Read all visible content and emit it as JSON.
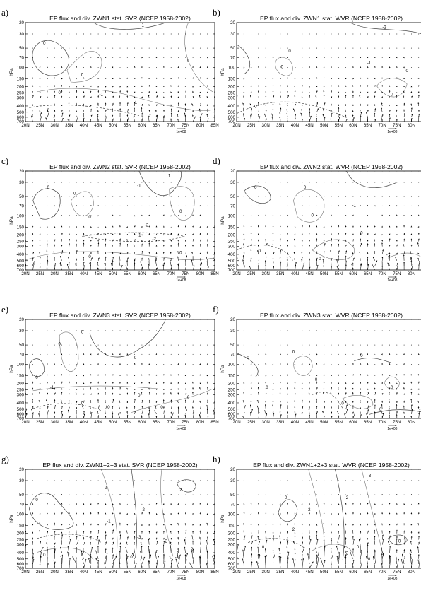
{
  "chart_data": [
    {
      "id": "a",
      "panel_label": "a)",
      "type": "vector-contour",
      "title": "EP flux and div. ZWN1 stat. SVR (NCEP 1958-2002)",
      "ylabel": "hPa",
      "reference_vector": "1e+08",
      "contour_labels": [
        "0",
        "0",
        "-1",
        "0",
        "0",
        "-1",
        "1",
        "0"
      ],
      "vector_scale": 1
    },
    {
      "id": "b",
      "panel_label": "b)",
      "type": "vector-contour",
      "title": "EP flux and div. ZWN1 stat. WVR (NCEP 1958-2002)",
      "ylabel": "hPa",
      "reference_vector": "1e+08",
      "contour_labels": [
        "-2",
        "0",
        "0",
        "0",
        "0",
        "-1",
        "0"
      ],
      "vector_scale": 1
    },
    {
      "id": "c",
      "panel_label": "c)",
      "type": "vector-contour",
      "title": "EP flux and div. ZWN2 stat. SVR (NCEP 1958-2002)",
      "ylabel": "hPa",
      "reference_vector": "1e+08",
      "contour_labels": [
        "0",
        "-1",
        "0",
        "0",
        "0",
        "1",
        "-1",
        "-2",
        "0",
        "-2",
        "0"
      ],
      "vector_scale": 1.2
    },
    {
      "id": "d",
      "panel_label": "d)",
      "type": "vector-contour",
      "title": "EP flux and div. ZWN2 stat. WVR (NCEP 1958-2002)",
      "ylabel": "hPa",
      "reference_vector": "1e+08",
      "contour_labels": [
        "0",
        "0",
        "-1",
        "0",
        "0",
        "-1",
        "0",
        "0",
        "0"
      ],
      "vector_scale": 1.3
    },
    {
      "id": "e",
      "panel_label": "e)",
      "type": "vector-contour",
      "title": "EP flux and div. ZWN3 stat. SVR (NCEP 1958-2002)",
      "ylabel": "hPa",
      "reference_vector": "1e+08",
      "contour_labels": [
        "0",
        "0",
        "0",
        "0",
        "-1",
        "0",
        "0",
        "0",
        "0",
        "0"
      ],
      "vector_scale": 1.1
    },
    {
      "id": "f",
      "panel_label": "f)",
      "type": "vector-contour",
      "title": "EP flux and div. ZWN3 stat. WVR (NCEP 1958-2002)",
      "ylabel": "hPa",
      "reference_vector": "1e+08",
      "contour_labels": [
        "0",
        "0",
        "0",
        "0",
        "0",
        "0",
        "0",
        "0"
      ],
      "vector_scale": 1.1
    },
    {
      "id": "g",
      "panel_label": "g)",
      "type": "vector-contour",
      "title": "EP flux and div. ZWN1+2+3 stat. SVR (NCEP 1958-2002)",
      "ylabel": "hPa",
      "reference_vector": "1e+08",
      "contour_labels": [
        "-2",
        "2",
        "0",
        "0",
        "-1",
        "-2",
        "-3",
        "-2",
        "0",
        "2",
        "-1",
        "0"
      ],
      "vector_scale": 2.2
    },
    {
      "id": "h",
      "panel_label": "h)",
      "type": "vector-contour",
      "title": "EP flux and div. ZWN1+2+3 stat. WVR (NCEP 1958-2002)",
      "ylabel": "hPa",
      "reference_vector": "1e+08",
      "contour_labels": [
        "-3",
        "-2",
        "0",
        "0",
        "-2",
        "2",
        "0",
        "-2",
        "0",
        "0"
      ],
      "vector_scale": 2.2
    }
  ],
  "axes": {
    "x_ticks": [
      "20N",
      "25N",
      "30N",
      "35N",
      "40N",
      "45N",
      "50N",
      "55N",
      "60N",
      "65N",
      "70N",
      "75N",
      "80N",
      "85N"
    ],
    "x_range": [
      20,
      85
    ],
    "y_ticks": [
      "20",
      "30",
      "50",
      "70",
      "100",
      "150",
      "200",
      "250",
      "300",
      "400",
      "500",
      "600",
      "700"
    ],
    "y_levels": [
      20,
      30,
      50,
      70,
      100,
      150,
      200,
      250,
      300,
      400,
      500,
      600,
      700
    ],
    "y_scale": "log",
    "y_range": [
      700,
      20
    ]
  }
}
